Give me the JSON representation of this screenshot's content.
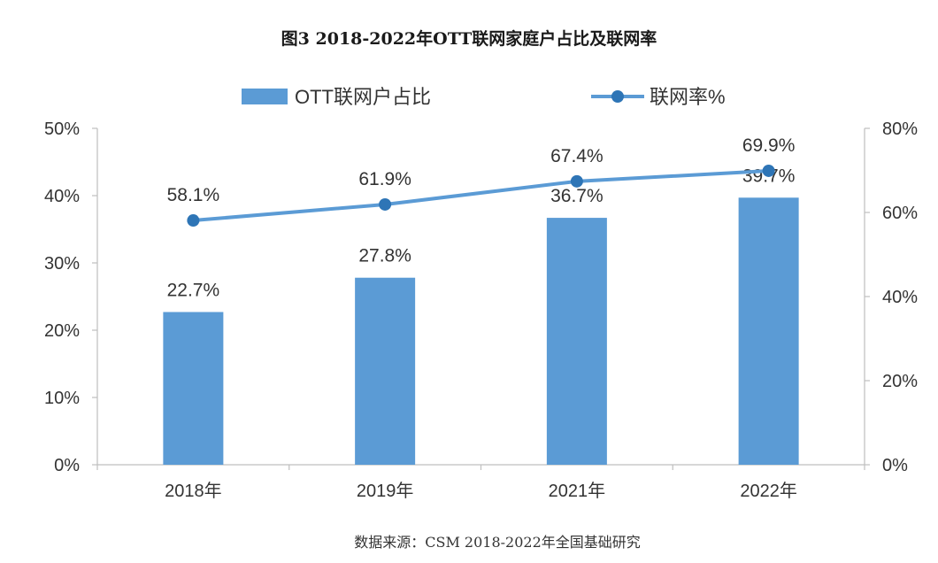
{
  "title": "图3 2018-2022年OTT联网家庭户占比及联网率",
  "source": "数据来源：CSM 2018-2022年全国基础研究",
  "chart_data": {
    "type": "bar",
    "categories": [
      "2018年",
      "2019年",
      "2021年",
      "2022年"
    ],
    "series": [
      {
        "name": "OTT联网户占比",
        "type": "bar",
        "axis": "left",
        "values": [
          22.7,
          27.8,
          36.7,
          39.7
        ],
        "labels": [
          "22.7%",
          "27.8%",
          "36.7%",
          "39.7%"
        ],
        "color": "#5b9bd5"
      },
      {
        "name": "联网率%",
        "type": "line",
        "axis": "right",
        "values": [
          58.1,
          61.9,
          67.4,
          69.9
        ],
        "labels": [
          "58.1%",
          "61.9%",
          "67.4%",
          "69.9%"
        ],
        "color": "#2e75b6"
      }
    ],
    "left_axis": {
      "ylim": [
        0,
        50
      ],
      "ticks": [
        0,
        10,
        20,
        30,
        40,
        50
      ],
      "tick_labels": [
        "0%",
        "10%",
        "20%",
        "30%",
        "40%",
        "50%"
      ]
    },
    "right_axis": {
      "ylim": [
        0,
        80
      ],
      "ticks": [
        0,
        20,
        40,
        60,
        80
      ],
      "tick_labels": [
        "0%",
        "20%",
        "40%",
        "60%",
        "80%"
      ]
    },
    "legend_position": "top",
    "grid": false
  }
}
